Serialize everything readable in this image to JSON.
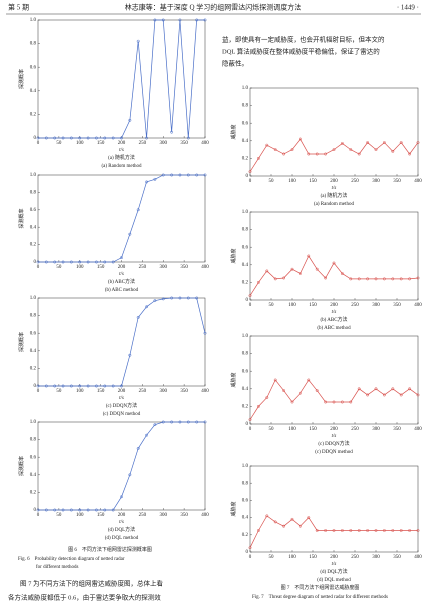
{
  "header": {
    "issue": "第 5 期",
    "title": "林志康等：基于深度 Q 学习的组网雷达闪烁探测调度方法",
    "page": "· 1449 ·"
  },
  "text": {
    "right_top": [
      "益，即使具有一定威胁度，也会开机辐射目标，但本文的",
      "DQL 算法威胁度在整体威胁度平稳偏低，保证了雷达的",
      "隐蔽性。"
    ],
    "left_bottom": [
      "图 7 为不同方法下的组网雷达威胁度图，总体上看",
      "各方法威胁度都低于 0.6，由于雷达要争取大的探测效"
    ]
  },
  "figures": {
    "fig6": [
      "图 6　不同方法下组网雷达探测概率图",
      "Fig. 6　Probability detection diagram of netted radar",
      "for different methods"
    ],
    "fig7": [
      "图 7　不同方法下组网雷达威胁度图",
      "Fig. 7　Threat degree diagram of netted radar for different methods"
    ]
  },
  "chart_data": [
    {
      "type": "line",
      "title_cn": "(a) 随机方法",
      "title_en": "(a) Random method",
      "xlabel": "t/s",
      "ylabel": "探测概率",
      "color": "#4a6fc8",
      "x": [
        0,
        20,
        40,
        60,
        80,
        100,
        120,
        140,
        160,
        180,
        200,
        220,
        240,
        260,
        280,
        300,
        320,
        340,
        360,
        380,
        400
      ],
      "values": [
        0,
        0,
        0,
        0,
        0,
        0,
        0,
        0,
        0,
        0,
        0,
        0.15,
        0.82,
        0,
        1,
        1,
        0.05,
        1,
        0,
        1,
        1
      ],
      "xlim": [
        0,
        400
      ],
      "ylim": [
        0,
        1
      ],
      "xticks": [
        0,
        50,
        100,
        150,
        200,
        250,
        300,
        350,
        400
      ],
      "yticks": [
        0,
        0.2,
        0.4,
        0.6,
        0.8,
        {
          "value": 1,
          "label": "1.0"
        }
      ]
    },
    {
      "type": "line",
      "title_cn": "(b) ABC方法",
      "title_en": "(b) ABC method",
      "xlabel": "t/s",
      "ylabel": "探测概率",
      "color": "#4a6fc8",
      "x": [
        0,
        20,
        40,
        60,
        80,
        100,
        120,
        140,
        160,
        180,
        200,
        220,
        240,
        260,
        280,
        300,
        320,
        340,
        360,
        380,
        400
      ],
      "values": [
        0,
        0,
        0,
        0,
        0,
        0,
        0,
        0,
        0,
        0,
        0.05,
        0.32,
        0.6,
        0.92,
        0.95,
        1,
        1,
        1,
        1,
        1,
        1
      ],
      "xlim": [
        0,
        400
      ],
      "ylim": [
        0,
        1
      ],
      "xticks": [
        0,
        50,
        100,
        150,
        200,
        250,
        300,
        350,
        400
      ],
      "yticks": [
        0,
        0.2,
        0.4,
        0.6,
        0.8,
        {
          "value": 1,
          "label": "1.0"
        }
      ]
    },
    {
      "type": "line",
      "title_cn": "(c) DDQN方法",
      "title_en": "(c) DDQN method",
      "xlabel": "t/s",
      "ylabel": "探测概率",
      "color": "#4a6fc8",
      "x": [
        0,
        20,
        40,
        60,
        80,
        100,
        120,
        140,
        160,
        180,
        200,
        220,
        240,
        260,
        280,
        300,
        320,
        340,
        360,
        380,
        400
      ],
      "values": [
        0,
        0,
        0,
        0,
        0,
        0,
        0,
        0,
        0,
        0,
        0,
        0.35,
        0.78,
        0.9,
        0.97,
        0.99,
        1,
        1,
        1,
        1,
        0.6
      ],
      "xlim": [
        0,
        400
      ],
      "ylim": [
        0,
        1
      ],
      "xticks": [
        0,
        50,
        100,
        150,
        200,
        250,
        300,
        350,
        400
      ],
      "yticks": [
        0,
        0.2,
        0.4,
        0.6,
        0.8,
        {
          "value": 1,
          "label": "1.0"
        }
      ]
    },
    {
      "type": "line",
      "title_cn": "(d) DQL方法",
      "title_en": "(d) DQL method",
      "xlabel": "t/s",
      "ylabel": "探测概率",
      "color": "#4a6fc8",
      "x": [
        0,
        20,
        40,
        60,
        80,
        100,
        120,
        140,
        160,
        180,
        200,
        220,
        240,
        260,
        280,
        300,
        320,
        340,
        360,
        380,
        400
      ],
      "values": [
        0,
        0,
        0,
        0,
        0,
        0,
        0,
        0,
        0,
        0,
        0.15,
        0.4,
        0.7,
        0.85,
        0.97,
        1,
        1,
        1,
        1,
        1,
        1
      ],
      "xlim": [
        0,
        400
      ],
      "ylim": [
        0,
        1
      ],
      "xticks": [
        0,
        50,
        100,
        150,
        200,
        250,
        300,
        350,
        400
      ],
      "yticks": [
        0,
        0.2,
        0.4,
        0.6,
        0.8,
        {
          "value": 1,
          "label": "1.0"
        }
      ]
    },
    {
      "type": "line",
      "title_cn": "(a) 随机方法",
      "title_en": "(a) Random method",
      "xlabel": "t/s",
      "ylabel": "威胁度",
      "color": "#d9534f",
      "x": [
        0,
        20,
        40,
        60,
        80,
        100,
        120,
        140,
        160,
        180,
        200,
        220,
        240,
        260,
        280,
        300,
        320,
        340,
        360,
        380,
        400
      ],
      "values": [
        0.05,
        0.2,
        0.35,
        0.3,
        0.25,
        0.3,
        0.42,
        0.25,
        0.25,
        0.25,
        0.3,
        0.37,
        0.3,
        0.25,
        0.38,
        0.3,
        0.38,
        0.28,
        0.38,
        0.25,
        0.38
      ],
      "xlim": [
        0,
        400
      ],
      "ylim": [
        0,
        1
      ],
      "xticks": [
        0,
        50,
        100,
        150,
        200,
        250,
        300,
        350,
        400
      ],
      "yticks": [
        0,
        0.2,
        0.4,
        0.6,
        0.8,
        {
          "value": 1,
          "label": "1.0"
        }
      ]
    },
    {
      "type": "line",
      "title_cn": "(b) ABC方法",
      "title_en": "(b) ABC method",
      "xlabel": "t/s",
      "ylabel": "威胁度",
      "color": "#d9534f",
      "x": [
        0,
        20,
        40,
        60,
        80,
        100,
        120,
        140,
        160,
        180,
        200,
        220,
        240,
        260,
        280,
        300,
        320,
        340,
        360,
        380,
        400
      ],
      "values": [
        0.05,
        0.2,
        0.33,
        0.24,
        0.25,
        0.35,
        0.3,
        0.5,
        0.35,
        0.25,
        0.42,
        0.3,
        0.24,
        0.24,
        0.24,
        0.24,
        0.24,
        0.24,
        0.24,
        0.24,
        0.25
      ],
      "xlim": [
        0,
        400
      ],
      "ylim": [
        0,
        1
      ],
      "xticks": [
        0,
        50,
        100,
        150,
        200,
        250,
        300,
        350,
        400
      ],
      "yticks": [
        0,
        0.2,
        0.4,
        0.6,
        0.8,
        {
          "value": 1,
          "label": "1.0"
        }
      ]
    },
    {
      "type": "line",
      "title_cn": "(c) DDQN方法",
      "title_en": "(c) DDQN method",
      "xlabel": "t/s",
      "ylabel": "威胁度",
      "color": "#d9534f",
      "x": [
        0,
        20,
        40,
        60,
        80,
        100,
        120,
        140,
        160,
        180,
        200,
        220,
        240,
        260,
        280,
        300,
        320,
        340,
        360,
        380,
        400
      ],
      "values": [
        0.05,
        0.2,
        0.3,
        0.5,
        0.38,
        0.25,
        0.35,
        0.5,
        0.38,
        0.25,
        0.25,
        0.25,
        0.25,
        0.4,
        0.33,
        0.4,
        0.33,
        0.4,
        0.33,
        0.4,
        0.33
      ],
      "xlim": [
        0,
        400
      ],
      "ylim": [
        0,
        1
      ],
      "xticks": [
        0,
        50,
        100,
        150,
        200,
        250,
        300,
        350,
        400
      ],
      "yticks": [
        0,
        0.2,
        0.4,
        0.6,
        0.8,
        {
          "value": 1,
          "label": "1.0"
        }
      ]
    },
    {
      "type": "line",
      "title_cn": "(d) DQL方法",
      "title_en": "(d) DQL method",
      "xlabel": "t/s",
      "ylabel": "威胁度",
      "color": "#d9534f",
      "x": [
        0,
        20,
        40,
        60,
        80,
        100,
        120,
        140,
        160,
        180,
        200,
        220,
        240,
        260,
        280,
        300,
        320,
        340,
        360,
        380,
        400
      ],
      "values": [
        0.05,
        0.25,
        0.42,
        0.35,
        0.3,
        0.38,
        0.3,
        0.4,
        0.25,
        0.25,
        0.25,
        0.25,
        0.25,
        0.25,
        0.25,
        0.25,
        0.25,
        0.25,
        0.25,
        0.25,
        0.25
      ],
      "xlim": [
        0,
        400
      ],
      "ylim": [
        0,
        1
      ],
      "xticks": [
        0,
        50,
        100,
        150,
        200,
        250,
        300,
        350,
        400
      ],
      "yticks": [
        0,
        0.2,
        0.4,
        0.6,
        0.8,
        {
          "value": 1,
          "label": "1.0"
        }
      ]
    }
  ]
}
